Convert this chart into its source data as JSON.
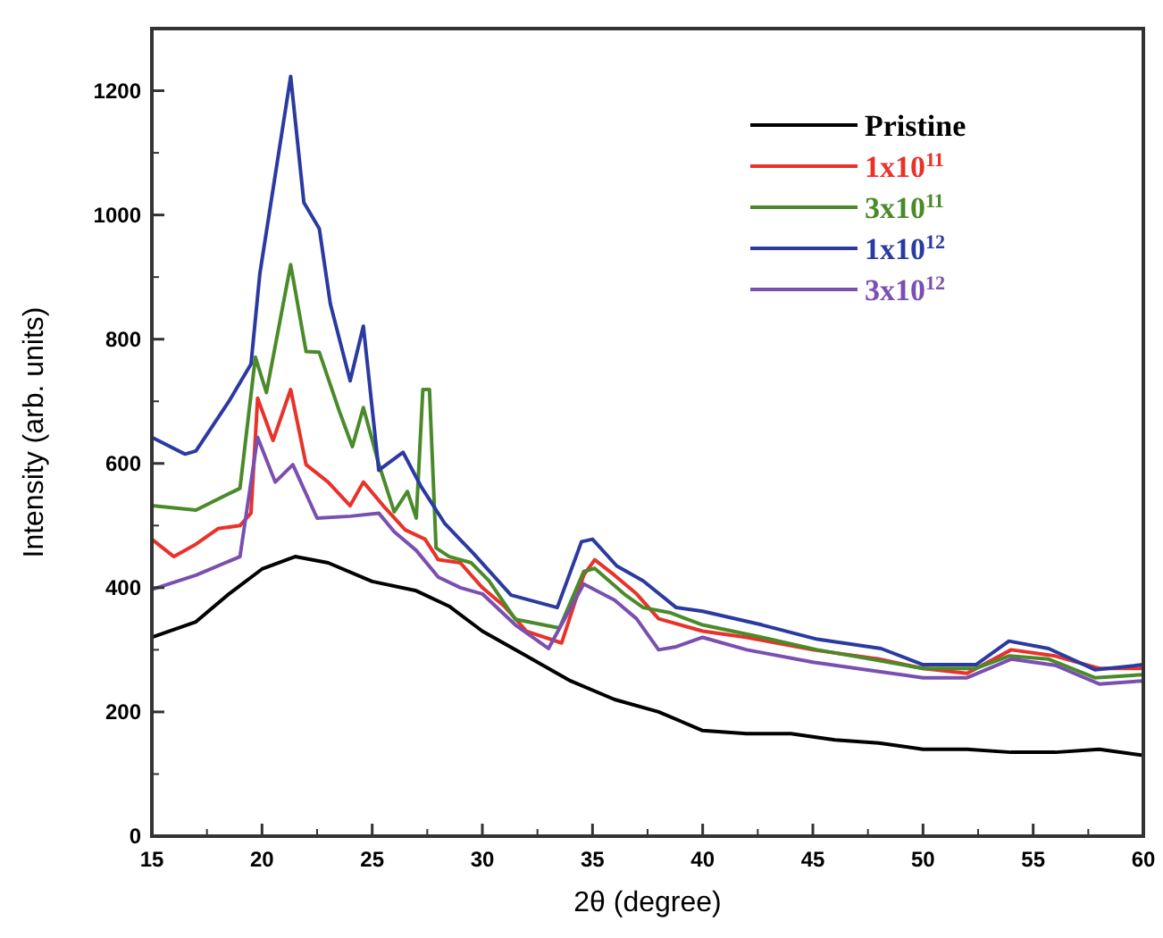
{
  "chart_data": {
    "type": "line",
    "xlabel": "2θ (degree)",
    "ylabel": "Intensity (arb. units)",
    "xlim": [
      15,
      60
    ],
    "ylim": [
      0,
      1300
    ],
    "xticks": [
      15,
      20,
      25,
      30,
      35,
      40,
      45,
      50,
      55,
      60
    ],
    "yticks": [
      0,
      200,
      400,
      600,
      800,
      1000,
      1200
    ],
    "legend": "top right",
    "grid": false,
    "series": [
      {
        "name": "Pristine",
        "color": "#000000",
        "x": [
          15,
          17,
          18.5,
          20,
          21.5,
          23,
          25,
          27,
          28.5,
          30,
          32,
          34,
          36,
          38,
          40,
          42,
          44,
          46,
          48,
          50,
          52,
          54,
          56,
          58,
          60
        ],
        "values": [
          320,
          345,
          390,
          430,
          450,
          440,
          410,
          395,
          370,
          330,
          290,
          250,
          220,
          200,
          170,
          165,
          165,
          155,
          150,
          140,
          140,
          135,
          135,
          140,
          130
        ]
      },
      {
        "name": "1x10$^{11}$",
        "color": "#e8322a",
        "x": [
          15,
          16,
          17,
          18,
          19,
          19.5,
          19.8,
          20.5,
          21.3,
          22,
          23,
          24,
          24.6,
          25.5,
          26.5,
          27.4,
          28,
          29,
          30,
          31,
          32,
          33.6,
          34.6,
          35.1,
          36,
          37,
          38,
          40,
          42,
          45,
          48,
          50,
          52,
          54,
          56,
          58,
          60
        ],
        "values": [
          478,
          450,
          470,
          495,
          500,
          520,
          705,
          637,
          719,
          598,
          570,
          532,
          570,
          532,
          493,
          478,
          445,
          440,
          400,
          370,
          330,
          311,
          420,
          445,
          420,
          390,
          350,
          330,
          320,
          300,
          285,
          270,
          262,
          300,
          290,
          270,
          270
        ]
      },
      {
        "name": "3x10$^{11}$",
        "color": "#4a8a2a",
        "x": [
          15,
          17,
          19,
          19.7,
          20.2,
          21.3,
          22,
          22.6,
          23.5,
          24.1,
          24.6,
          25.3,
          26,
          26.6,
          27,
          27.3,
          27.6,
          27.9,
          28.5,
          29.5,
          30.3,
          31.5,
          33.5,
          34.6,
          35.1,
          36.5,
          37.3,
          38.5,
          40,
          42.7,
          45.2,
          48.1,
          50,
          52.4,
          53.9,
          55.7,
          57.8,
          60
        ],
        "values": [
          532,
          525,
          560,
          771,
          714,
          920,
          780,
          779,
          685,
          627,
          690,
          599,
          522,
          555,
          512,
          719,
          719,
          464,
          450,
          440,
          411,
          349,
          335,
          426,
          431,
          388,
          368,
          360,
          340,
          320,
          300,
          282,
          270,
          270,
          290,
          285,
          255,
          260
        ]
      },
      {
        "name": "1x10$^{12}$",
        "color": "#2b3aa0",
        "x": [
          15,
          16.5,
          17,
          18.5,
          19.5,
          19.9,
          21.3,
          21.9,
          22.6,
          23.1,
          24,
          24.6,
          25.3,
          26.4,
          27.2,
          28.3,
          29.6,
          31.3,
          33.4,
          34.5,
          35,
          36.1,
          37.3,
          38.8,
          40,
          42.7,
          45.2,
          48.1,
          50,
          52.4,
          53.9,
          55.7,
          57.8,
          60
        ],
        "values": [
          642,
          615,
          620,
          700,
          760,
          905,
          1223,
          1020,
          978,
          857,
          733,
          821,
          589,
          618,
          564,
          503,
          455,
          388,
          368,
          474,
          478,
          435,
          411,
          368,
          362,
          340,
          317,
          302,
          276,
          276,
          314,
          302,
          268,
          276
        ]
      },
      {
        "name": "3x10$^{12}$",
        "color": "#7a4fb0",
        "x": [
          15,
          17,
          19,
          19.8,
          20.6,
          21.4,
          22.5,
          24,
          25.3,
          26,
          27,
          28,
          29,
          30,
          31.5,
          33,
          34.6,
          36,
          37,
          38,
          38.8,
          40,
          42,
          45,
          48,
          50,
          52,
          54,
          56,
          58,
          60
        ],
        "values": [
          397,
          420,
          450,
          642,
          570,
          598,
          512,
          515,
          520,
          490,
          460,
          417,
          400,
          390,
          340,
          302,
          406,
          380,
          350,
          300,
          305,
          320,
          300,
          280,
          265,
          255,
          255,
          285,
          275,
          245,
          250
        ]
      }
    ]
  }
}
